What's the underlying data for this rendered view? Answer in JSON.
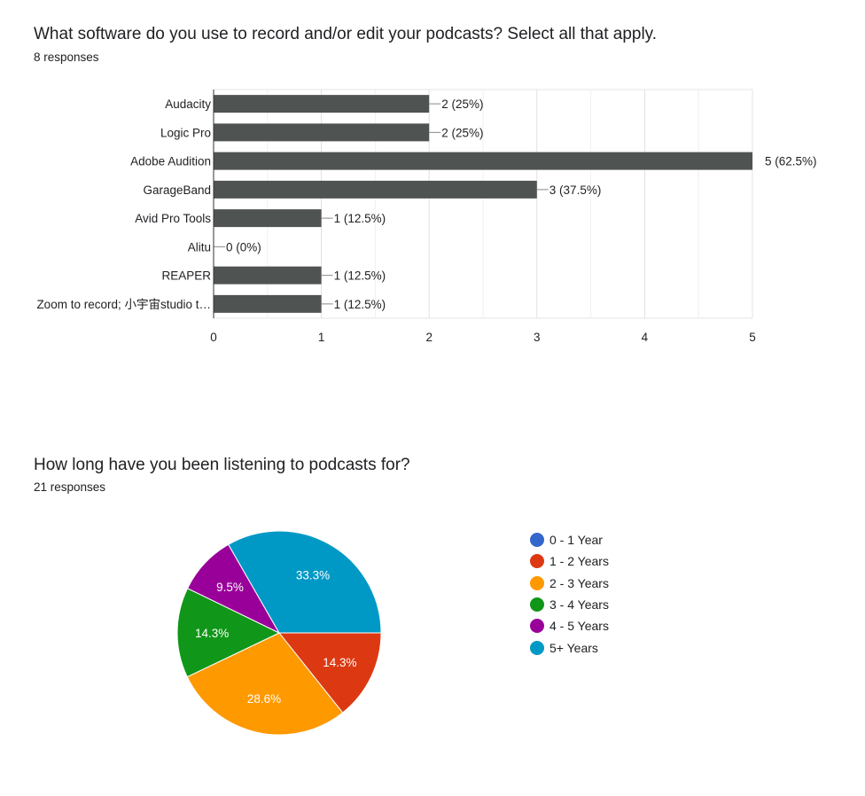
{
  "bar_question": {
    "title": "What software do you use to record and/or edit your podcasts? Select all that apply.",
    "responses": "8 responses"
  },
  "pie_question": {
    "title": "How long have you been listening to podcasts for?",
    "responses": "21 responses"
  },
  "chart_data": [
    {
      "type": "bar",
      "orientation": "horizontal",
      "categories": [
        "Audacity",
        "Logic Pro",
        "Adobe Audition",
        "GarageBand",
        "Avid Pro Tools",
        "Alitu",
        "REAPER",
        "Zoom to record; 小宇宙studio t…"
      ],
      "values": [
        2,
        2,
        5,
        3,
        1,
        0,
        1,
        1
      ],
      "data_labels": [
        "2 (25%)",
        "2 (25%)",
        "5 (62.5%)",
        "3 (37.5%)",
        "1 (12.5%)",
        "0 (0%)",
        "1 (12.5%)",
        "1 (12.5%)"
      ],
      "xlim": [
        0,
        5
      ],
      "x_ticks": [
        "0",
        "1",
        "2",
        "3",
        "4",
        "5"
      ],
      "grid": true,
      "bar_color": "#4f5352"
    },
    {
      "type": "pie",
      "labels": [
        "0 - 1 Year",
        "1 - 2 Years",
        "2 - 3 Years",
        "3 - 4 Years",
        "4 - 5 Years",
        "5+ Years"
      ],
      "values": [
        0,
        14.3,
        28.6,
        14.3,
        9.5,
        33.3
      ],
      "slice_labels": [
        "",
        "14.3%",
        "28.6%",
        "14.3%",
        "9.5%",
        "33.3%"
      ],
      "colors": [
        "#3366cc",
        "#dc3912",
        "#ff9900",
        "#109618",
        "#990099",
        "#0099c6"
      ],
      "legend_position": "right"
    }
  ]
}
